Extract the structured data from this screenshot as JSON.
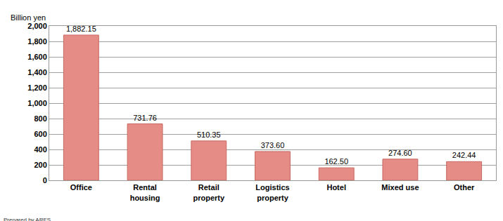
{
  "chart_data": {
    "type": "bar",
    "y_label": "Billion yen",
    "annotations": [
      "Prepared by ARES"
    ],
    "categories": [
      "Office",
      "Rental housing",
      "Retail property",
      "Logistics property",
      "Hotel",
      "Mixed use",
      "Other"
    ],
    "values": [
      1882.15,
      731.76,
      510.35,
      373.6,
      162.5,
      274.6,
      242.44
    ],
    "value_labels": [
      "1,882.15",
      "731.76",
      "510.35",
      "373.60",
      "162.50",
      "274.60",
      "242.44"
    ],
    "data_labels": true,
    "color": "#e58c86",
    "ylim": [
      0,
      2000
    ],
    "yticks": [
      0,
      200,
      400,
      600,
      800,
      {
        "value": 1000,
        "label": "1,000"
      },
      {
        "value": 1200,
        "label": "1,200"
      },
      {
        "value": 1400,
        "label": "1,400"
      },
      {
        "value": 1600,
        "label": "1,600"
      },
      {
        "value": 1800,
        "label": "1,800"
      },
      {
        "value": 2000,
        "label": "2,000"
      }
    ],
    "grid": true
  }
}
